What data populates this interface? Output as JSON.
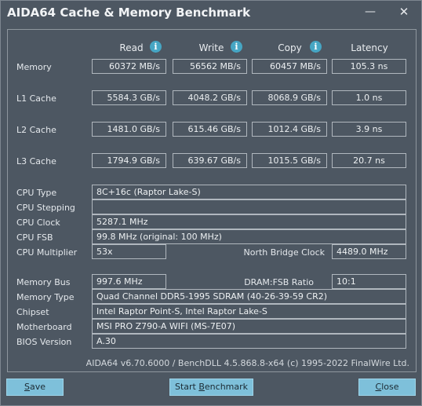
{
  "window": {
    "title": "AIDA64 Cache & Memory Benchmark",
    "minimize_glyph": "—",
    "close_glyph": "✕"
  },
  "headers": {
    "read": "Read",
    "write": "Write",
    "copy": "Copy",
    "latency": "Latency",
    "info_glyph": "i"
  },
  "rows": [
    {
      "label": "Memory",
      "read": "60372 MB/s",
      "write": "56562 MB/s",
      "copy": "60457 MB/s",
      "latency": "105.3 ns"
    },
    {
      "label": "L1 Cache",
      "read": "5584.3 GB/s",
      "write": "4048.2 GB/s",
      "copy": "8068.9 GB/s",
      "latency": "1.0 ns"
    },
    {
      "label": "L2 Cache",
      "read": "1481.0 GB/s",
      "write": "615.46 GB/s",
      "copy": "1012.4 GB/s",
      "latency": "3.9 ns"
    },
    {
      "label": "L3 Cache",
      "read": "1794.9 GB/s",
      "write": "639.67 GB/s",
      "copy": "1015.5 GB/s",
      "latency": "20.7 ns"
    }
  ],
  "cpu": {
    "type_label": "CPU Type",
    "type_value": "8C+16c   (Raptor Lake-S)",
    "stepping_label": "CPU Stepping",
    "stepping_value": "",
    "clock_label": "CPU Clock",
    "clock_value": "5287.1 MHz",
    "fsb_label": "CPU FSB",
    "fsb_value": "99.8 MHz  (original: 100 MHz)",
    "multiplier_label": "CPU Multiplier",
    "multiplier_value": "53x",
    "nb_clock_label": "North Bridge Clock",
    "nb_clock_value": "4489.0 MHz"
  },
  "memory": {
    "bus_label": "Memory Bus",
    "bus_value": "997.6 MHz",
    "ratio_label": "DRAM:FSB Ratio",
    "ratio_value": "10:1",
    "type_label": "Memory Type",
    "type_value": "Quad Channel DDR5-1995 SDRAM  (40-26-39-59 CR2)",
    "chipset_label": "Chipset",
    "chipset_value": "Intel Raptor Point-S, Intel Raptor Lake-S",
    "mobo_label": "Motherboard",
    "mobo_value": "MSI PRO Z790-A WIFI (MS-7E07)",
    "bios_label": "BIOS Version",
    "bios_value": "A.30"
  },
  "footer": "AIDA64 v6.70.6000 / BenchDLL 4.5.868.8-x64  (c) 1995-2022 FinalWire Ltd.",
  "buttons": {
    "save_first": "S",
    "save_rest": "ave",
    "start_pre": "Start ",
    "start_u": "B",
    "start_post": "enchmark",
    "close_first": "C",
    "close_rest": "lose"
  }
}
